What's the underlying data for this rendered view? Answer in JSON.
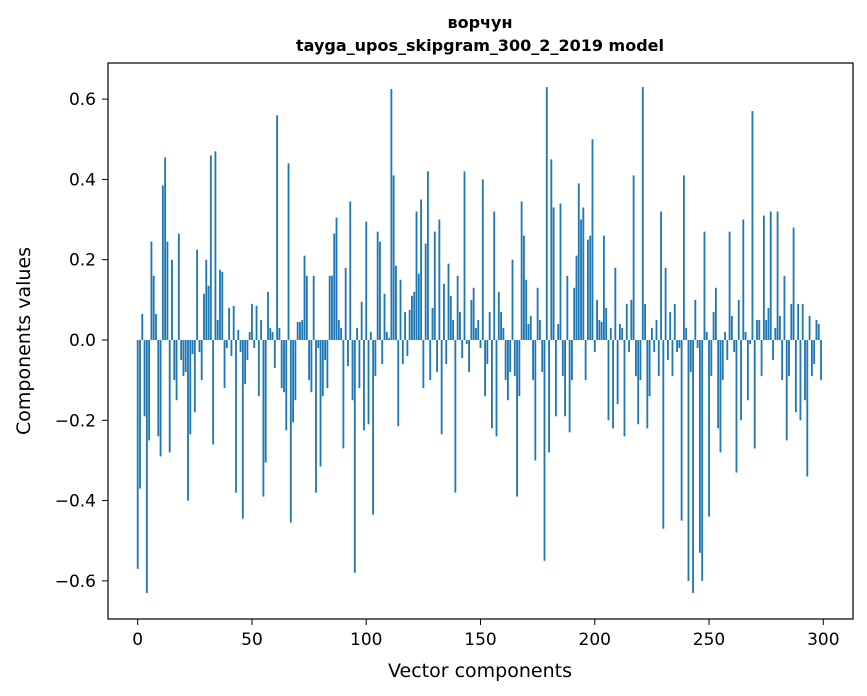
{
  "chart_data": {
    "type": "bar",
    "title": "ворчун",
    "subtitle": "tayga_upos_skipgram_300_2_2019 model",
    "xlabel": "Vector components",
    "ylabel": "Components values",
    "xlim": [
      -13,
      313
    ],
    "ylim": [
      -0.695,
      0.69
    ],
    "xticks": [
      0,
      50,
      100,
      150,
      200,
      250,
      300
    ],
    "xtick_labels": [
      "0",
      "50",
      "100",
      "150",
      "200",
      "250",
      "300"
    ],
    "yticks": [
      -0.6,
      -0.4,
      -0.2,
      0.0,
      0.2,
      0.4,
      0.6
    ],
    "ytick_labels": [
      "−0.6",
      "−0.4",
      "−0.2",
      "0.0",
      "0.2",
      "0.4",
      "0.6"
    ],
    "bar_color": "#1f77b4",
    "grid": false,
    "legend": "none",
    "values": [
      -0.57,
      -0.37,
      0.065,
      -0.19,
      -0.63,
      -0.25,
      0.245,
      0.16,
      0.065,
      -0.24,
      -0.29,
      0.385,
      0.455,
      0.245,
      -0.28,
      0.2,
      -0.1,
      -0.15,
      0.265,
      -0.05,
      -0.09,
      -0.08,
      -0.4,
      -0.235,
      -0.035,
      -0.18,
      0.225,
      -0.03,
      -0.1,
      0.115,
      0.2,
      0.135,
      0.46,
      -0.26,
      0.47,
      0.05,
      0.175,
      0.17,
      -0.12,
      -0.02,
      0.08,
      -0.04,
      0.085,
      -0.38,
      0.025,
      -0.03,
      -0.445,
      -0.11,
      -0.05,
      0.02,
      0.09,
      -0.02,
      0.085,
      -0.14,
      0.05,
      -0.39,
      -0.305,
      0.12,
      0.03,
      0.02,
      -0.07,
      0.56,
      0.03,
      -0.12,
      -0.13,
      -0.225,
      0.44,
      -0.455,
      -0.205,
      -0.15,
      0.045,
      0.045,
      0.05,
      0.21,
      0.16,
      -0.1,
      -0.13,
      0.16,
      -0.38,
      -0.02,
      -0.315,
      -0.14,
      -0.05,
      -0.12,
      0.16,
      0.16,
      0.265,
      0.305,
      0.05,
      0.03,
      -0.27,
      0.18,
      -0.065,
      0.345,
      -0.15,
      -0.58,
      0.03,
      -0.12,
      0.095,
      -0.225,
      0.295,
      -0.21,
      0.02,
      -0.435,
      -0.09,
      0.27,
      0.245,
      -0.06,
      0.115,
      0.02,
      0.005,
      0.625,
      0.41,
      0.185,
      -0.215,
      0.15,
      -0.06,
      0.07,
      -0.04,
      0.075,
      0.11,
      0.12,
      0.32,
      0.165,
      0.35,
      -0.12,
      0.24,
      0.42,
      -0.1,
      0.08,
      0.27,
      -0.08,
      0.3,
      -0.235,
      0.14,
      -0.06,
      0.19,
      0.11,
      0.05,
      -0.38,
      0.16,
      0.07,
      -0.045,
      0.42,
      -0.01,
      -0.08,
      0.1,
      0.13,
      0.03,
      0.05,
      -0.02,
      0.4,
      -0.14,
      -0.06,
      0.07,
      -0.22,
      0.32,
      -0.24,
      0.12,
      0.07,
      0.03,
      -0.1,
      -0.15,
      -0.08,
      0.2,
      -0.09,
      -0.39,
      -0.14,
      0.345,
      0.26,
      0.15,
      0.04,
      0.06,
      -0.1,
      -0.3,
      0.13,
      0.05,
      -0.08,
      -0.55,
      0.63,
      -0.28,
      0.45,
      0.33,
      -0.19,
      0.04,
      0.34,
      -0.09,
      -0.19,
      0.16,
      -0.23,
      -0.1,
      0.13,
      0.21,
      0.39,
      0.3,
      0.33,
      -0.1,
      0.25,
      0.26,
      0.5,
      -0.03,
      0.1,
      0.05,
      0.045,
      0.26,
      0.08,
      -0.2,
      0.03,
      -0.22,
      0.18,
      -0.16,
      0.04,
      0.03,
      -0.24,
      0.09,
      -0.03,
      0.1,
      0.41,
      -0.09,
      -0.21,
      -0.1,
      0.63,
      0.09,
      -0.22,
      -0.14,
      0.03,
      -0.03,
      0.05,
      -0.09,
      0.32,
      -0.47,
      0.18,
      -0.05,
      0.07,
      -0.09,
      0.09,
      -0.03,
      -0.02,
      -0.45,
      0.41,
      0.03,
      -0.6,
      -0.08,
      -0.63,
      0.1,
      -0.02,
      -0.53,
      -0.6,
      0.27,
      0.02,
      -0.44,
      -0.09,
      0.07,
      0.13,
      -0.22,
      -0.28,
      -0.1,
      0.02,
      -0.05,
      0.27,
      0.06,
      -0.03,
      -0.33,
      0.1,
      -0.2,
      0.3,
      0.02,
      -0.15,
      -0.01,
      0.57,
      -0.27,
      0.05,
      0.05,
      -0.09,
      0.31,
      0.05,
      0.08,
      0.32,
      -0.05,
      0.03,
      0.32,
      0.06,
      -0.1,
      0.16,
      -0.25,
      -0.09,
      0.09,
      0.28,
      -0.18,
      0.09,
      -0.2,
      0.09,
      -0.15,
      -0.34,
      0.06,
      -0.09,
      -0.06,
      0.05,
      0.04,
      -0.1
    ]
  }
}
